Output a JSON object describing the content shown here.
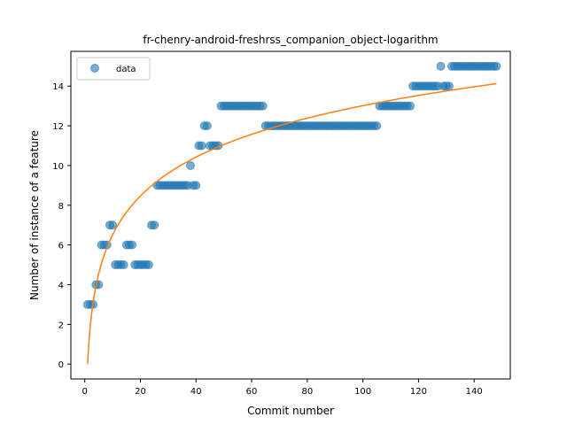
{
  "chart_data": {
    "type": "scatter",
    "title": "fr-chenry-android-freshrss_companion_object-logarithm",
    "xlabel": "Commit number",
    "ylabel": "Number of instance of a feature",
    "xlim": [
      -5,
      153
    ],
    "ylim": [
      -0.75,
      15.75
    ],
    "xticks": [
      0,
      20,
      40,
      60,
      80,
      100,
      120,
      140
    ],
    "yticks": [
      0,
      2,
      4,
      6,
      8,
      10,
      12,
      14
    ],
    "legend_position": "upper-left",
    "colors": {
      "points": "#1f77b4",
      "fit": "#ff7f0e"
    },
    "series": [
      {
        "name": "data",
        "kind": "scatter",
        "segments": [
          {
            "x_start": 1,
            "x_end": 3,
            "y": 3
          },
          {
            "x_start": 4,
            "x_end": 5,
            "y": 4
          },
          {
            "x_start": 6,
            "x_end": 8,
            "y": 6
          },
          {
            "x_start": 9,
            "x_end": 10,
            "y": 7
          },
          {
            "x_start": 11,
            "x_end": 14,
            "y": 5
          },
          {
            "x_start": 15,
            "x_end": 17,
            "y": 6
          },
          {
            "x_start": 18,
            "x_end": 23,
            "y": 5
          },
          {
            "x_start": 24,
            "x_end": 25,
            "y": 7
          },
          {
            "x_start": 26,
            "x_end": 37,
            "y": 9
          },
          {
            "x_start": 38,
            "x_end": 38,
            "y": 10
          },
          {
            "x_start": 39,
            "x_end": 40,
            "y": 9
          },
          {
            "x_start": 41,
            "x_end": 42,
            "y": 11
          },
          {
            "x_start": 43,
            "x_end": 44,
            "y": 12
          },
          {
            "x_start": 45,
            "x_end": 48,
            "y": 11
          },
          {
            "x_start": 49,
            "x_end": 64,
            "y": 13
          },
          {
            "x_start": 65,
            "x_end": 105,
            "y": 12
          },
          {
            "x_start": 106,
            "x_end": 117,
            "y": 13
          },
          {
            "x_start": 118,
            "x_end": 127,
            "y": 14
          },
          {
            "x_start": 128,
            "x_end": 128,
            "y": 15
          },
          {
            "x_start": 129,
            "x_end": 131,
            "y": 14
          },
          {
            "x_start": 132,
            "x_end": 148,
            "y": 15
          }
        ]
      },
      {
        "name": "",
        "kind": "line",
        "function": "logarithmic",
        "x_range": [
          1,
          148
        ],
        "a": 2.826,
        "b": 0
      }
    ]
  }
}
